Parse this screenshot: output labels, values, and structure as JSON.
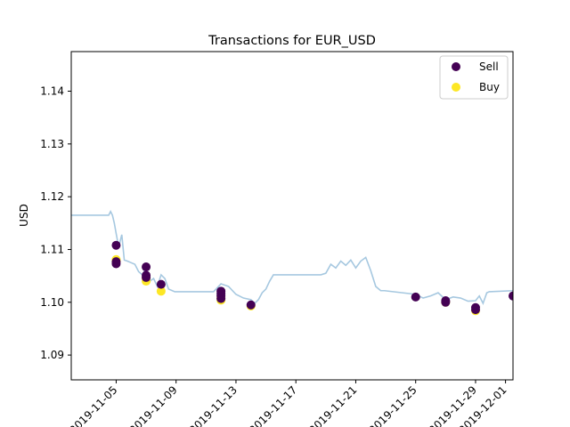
{
  "chart_data": {
    "type": "line",
    "title": "Transactions for EUR_USD",
    "xlabel": "",
    "ylabel": "USD",
    "ylim": [
      1.0853,
      1.1475
    ],
    "xlim": [
      "2019-11-02",
      "2019-12-01 12:00"
    ],
    "grid": false,
    "legend_position": "top-right",
    "y_ticks": [
      "1.09",
      "1.10",
      "1.11",
      "1.12",
      "1.13",
      "1.14"
    ],
    "x_ticks": [
      "2019-11-05",
      "2019-11-09",
      "2019-11-13",
      "2019-11-17",
      "2019-11-21",
      "2019-11-25",
      "2019-11-29",
      "2019-12-01"
    ],
    "x_tick_dates": [
      "2019-11-05",
      "2019-11-09",
      "2019-11-13",
      "2019-11-17",
      "2019-11-21",
      "2019-11-25",
      "2019-11-29",
      "2019-12-01"
    ],
    "price_series": {
      "color": "#a6c8e0",
      "x": [
        "2019-11-02",
        "2019-11-04 12:00",
        "2019-11-04 15:00",
        "2019-11-04 18:00",
        "2019-11-04 21:00",
        "2019-11-05 00:00",
        "2019-11-05 04:00",
        "2019-11-05 09:00",
        "2019-11-05 13:00",
        "2019-11-05 18:00",
        "2019-11-06 00:00",
        "2019-11-06 06:00",
        "2019-11-06 12:00",
        "2019-11-06 18:00",
        "2019-11-07 00:00",
        "2019-11-07 06:00",
        "2019-11-07 12:00",
        "2019-11-07 18:00",
        "2019-11-08 00:00",
        "2019-11-08 06:00",
        "2019-11-08 12:00",
        "2019-11-08 18:00",
        "2019-11-08 22:00",
        "2019-11-11 00:00",
        "2019-11-11 12:00",
        "2019-11-12 00:00",
        "2019-11-12 12:00",
        "2019-11-13 00:00",
        "2019-11-13 12:00",
        "2019-11-14 00:00",
        "2019-11-14 06:00",
        "2019-11-14 12:00",
        "2019-11-14 18:00",
        "2019-11-15 00:00",
        "2019-11-15 06:00",
        "2019-11-15 12:00",
        "2019-11-15 22:00",
        "2019-11-18 00:00",
        "2019-11-18 08:00",
        "2019-11-18 16:00",
        "2019-11-19 00:00",
        "2019-11-19 08:00",
        "2019-11-19 16:00",
        "2019-11-20 00:00",
        "2019-11-20 08:00",
        "2019-11-20 16:00",
        "2019-11-21 00:00",
        "2019-11-21 08:00",
        "2019-11-21 16:00",
        "2019-11-22 00:00",
        "2019-11-22 08:00",
        "2019-11-22 16:00",
        "2019-11-22 22:00",
        "2019-11-25 00:00",
        "2019-11-25 12:00",
        "2019-11-26 00:00",
        "2019-11-26 12:00",
        "2019-11-27 00:00",
        "2019-11-27 12:00",
        "2019-11-28 00:00",
        "2019-11-28 12:00",
        "2019-11-29 00:00",
        "2019-11-29 06:00",
        "2019-11-29 12:00",
        "2019-11-29 18:00",
        "2019-11-29 22:00",
        "2019-12-01 12:00"
      ],
      "y": [
        1.1165,
        1.1165,
        1.1172,
        1.1165,
        1.115,
        1.113,
        1.1105,
        1.1128,
        1.108,
        1.1078,
        1.1075,
        1.1072,
        1.1058,
        1.1052,
        1.1065,
        1.104,
        1.1045,
        1.103,
        1.1052,
        1.1045,
        1.1025,
        1.1022,
        1.102,
        1.102,
        1.102,
        1.1035,
        1.103,
        1.1015,
        1.1008,
        1.1005,
        1.0998,
        1.1005,
        1.1018,
        1.1025,
        1.104,
        1.1052,
        1.1052,
        1.1052,
        1.1052,
        1.1052,
        1.1055,
        1.1072,
        1.1065,
        1.1078,
        1.107,
        1.108,
        1.1065,
        1.1078,
        1.1085,
        1.106,
        1.103,
        1.1022,
        1.1022,
        1.1015,
        1.1008,
        1.1012,
        1.1018,
        1.1005,
        1.101,
        1.1008,
        1.1002,
        1.1003,
        1.1012,
        1.0998,
        1.1018,
        1.102,
        1.1022
      ]
    },
    "series": [
      {
        "name": "Sell",
        "color": "#440154",
        "x": [
          "2019-11-05",
          "2019-11-05",
          "2019-11-05",
          "2019-11-07",
          "2019-11-07",
          "2019-11-07",
          "2019-11-08",
          "2019-11-12",
          "2019-11-12",
          "2019-11-12",
          "2019-11-12",
          "2019-11-14",
          "2019-11-25",
          "2019-11-27",
          "2019-11-27",
          "2019-11-29",
          "2019-11-29",
          "2019-12-01 12:00"
        ],
        "y": [
          1.1108,
          1.1077,
          1.1073,
          1.1067,
          1.1051,
          1.1047,
          1.1034,
          1.1021,
          1.1016,
          1.1012,
          1.1007,
          1.0995,
          1.101,
          1.1003,
          1.1,
          1.099,
          1.0986,
          1.1012
        ]
      },
      {
        "name": "Buy",
        "color": "#fde725",
        "x": [
          "2019-11-05",
          "2019-11-05",
          "2019-11-07",
          "2019-11-07",
          "2019-11-08",
          "2019-11-12",
          "2019-11-12",
          "2019-11-14",
          "2019-11-27",
          "2019-11-29"
        ],
        "y": [
          1.1081,
          1.1078,
          1.1046,
          1.104,
          1.1021,
          1.1009,
          1.1004,
          1.0993,
          1.1,
          1.0984
        ]
      }
    ]
  }
}
